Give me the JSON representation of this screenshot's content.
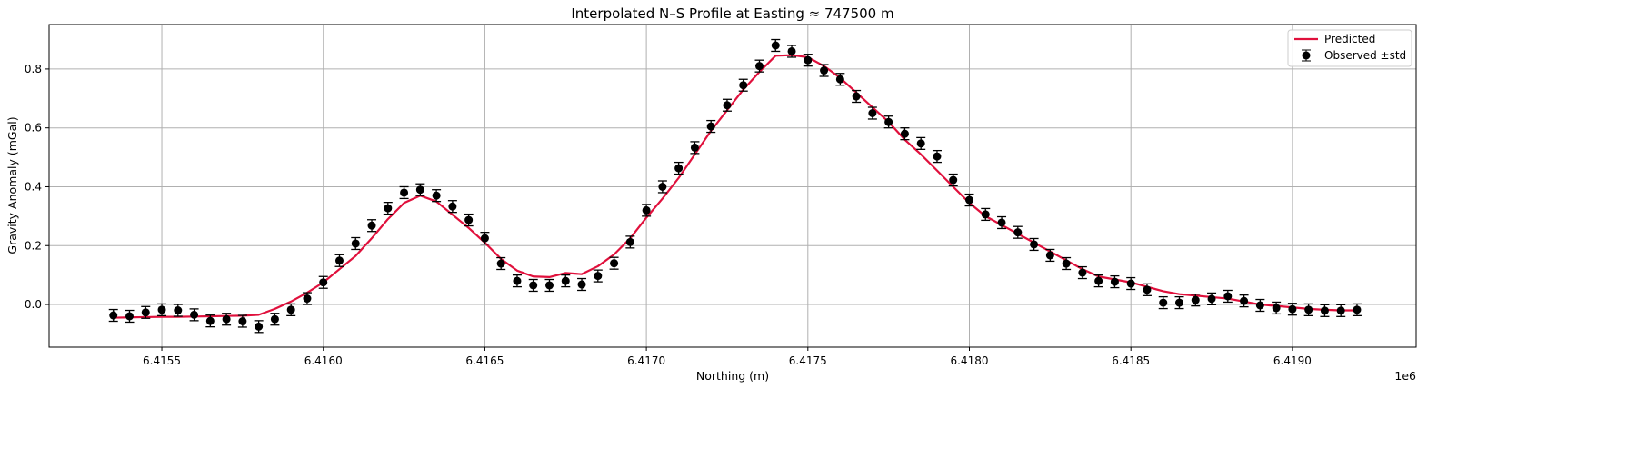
{
  "chart_data": {
    "type": "line",
    "title": "Interpolated N–S Profile at Easting ≈ 747500 m",
    "xlabel": "Northing (m)",
    "ylabel": "Gravity Anomaly (mGal)",
    "x_offset_label": "1e6",
    "xlim": [
      6415151,
      6419383
    ],
    "ylim": [
      -0.145,
      0.951
    ],
    "xticks": [
      6415500,
      6416000,
      6416500,
      6417000,
      6417500,
      6418000,
      6418500,
      6419000
    ],
    "xtick_labels": [
      "6.4155",
      "6.4160",
      "6.4165",
      "6.4170",
      "6.4175",
      "6.4180",
      "6.4185",
      "6.4190"
    ],
    "yticks": [
      0.0,
      0.2,
      0.4,
      0.6,
      0.8
    ],
    "ytick_labels": [
      "0.0",
      "0.2",
      "0.4",
      "0.6",
      "0.8"
    ],
    "grid": true,
    "legend_position": "top-right",
    "x_start": 6415350,
    "x_step": 50,
    "series": [
      {
        "name": "Predicted",
        "kind": "line",
        "color": "#e0103c",
        "values": [
          -0.045,
          -0.044,
          -0.043,
          -0.042,
          -0.042,
          -0.041,
          -0.04,
          -0.039,
          -0.038,
          -0.035,
          -0.015,
          0.01,
          0.04,
          0.075,
          0.12,
          0.165,
          0.225,
          0.29,
          0.345,
          0.37,
          0.35,
          0.305,
          0.26,
          0.21,
          0.155,
          0.115,
          0.095,
          0.093,
          0.107,
          0.103,
          0.13,
          0.17,
          0.225,
          0.295,
          0.36,
          0.43,
          0.51,
          0.59,
          0.66,
          0.73,
          0.79,
          0.845,
          0.847,
          0.84,
          0.81,
          0.77,
          0.72,
          0.67,
          0.62,
          0.56,
          0.51,
          0.455,
          0.4,
          0.345,
          0.3,
          0.27,
          0.24,
          0.21,
          0.18,
          0.15,
          0.12,
          0.095,
          0.085,
          0.075,
          0.06,
          0.045,
          0.035,
          0.03,
          0.025,
          0.02,
          0.01,
          0.0,
          -0.005,
          -0.01,
          -0.015,
          -0.018,
          -0.02,
          -0.02
        ]
      },
      {
        "name": "Observed ±std",
        "kind": "errorbar",
        "color": "#000000",
        "std": 0.02,
        "values": [
          -0.037,
          -0.04,
          -0.027,
          -0.018,
          -0.02,
          -0.035,
          -0.056,
          -0.05,
          -0.057,
          -0.075,
          -0.05,
          -0.018,
          0.02,
          0.075,
          0.149,
          0.207,
          0.268,
          0.327,
          0.38,
          0.39,
          0.37,
          0.333,
          0.287,
          0.225,
          0.139,
          0.08,
          0.065,
          0.065,
          0.08,
          0.068,
          0.097,
          0.14,
          0.212,
          0.32,
          0.4,
          0.463,
          0.533,
          0.605,
          0.677,
          0.745,
          0.81,
          0.88,
          0.86,
          0.83,
          0.795,
          0.765,
          0.707,
          0.65,
          0.62,
          0.58,
          0.547,
          0.503,
          0.423,
          0.355,
          0.306,
          0.278,
          0.245,
          0.204,
          0.167,
          0.139,
          0.108,
          0.08,
          0.077,
          0.071,
          0.05,
          0.006,
          0.006,
          0.015,
          0.019,
          0.028,
          0.012,
          -0.003,
          -0.012,
          -0.016,
          -0.018,
          -0.021,
          -0.021,
          -0.018
        ]
      }
    ]
  }
}
